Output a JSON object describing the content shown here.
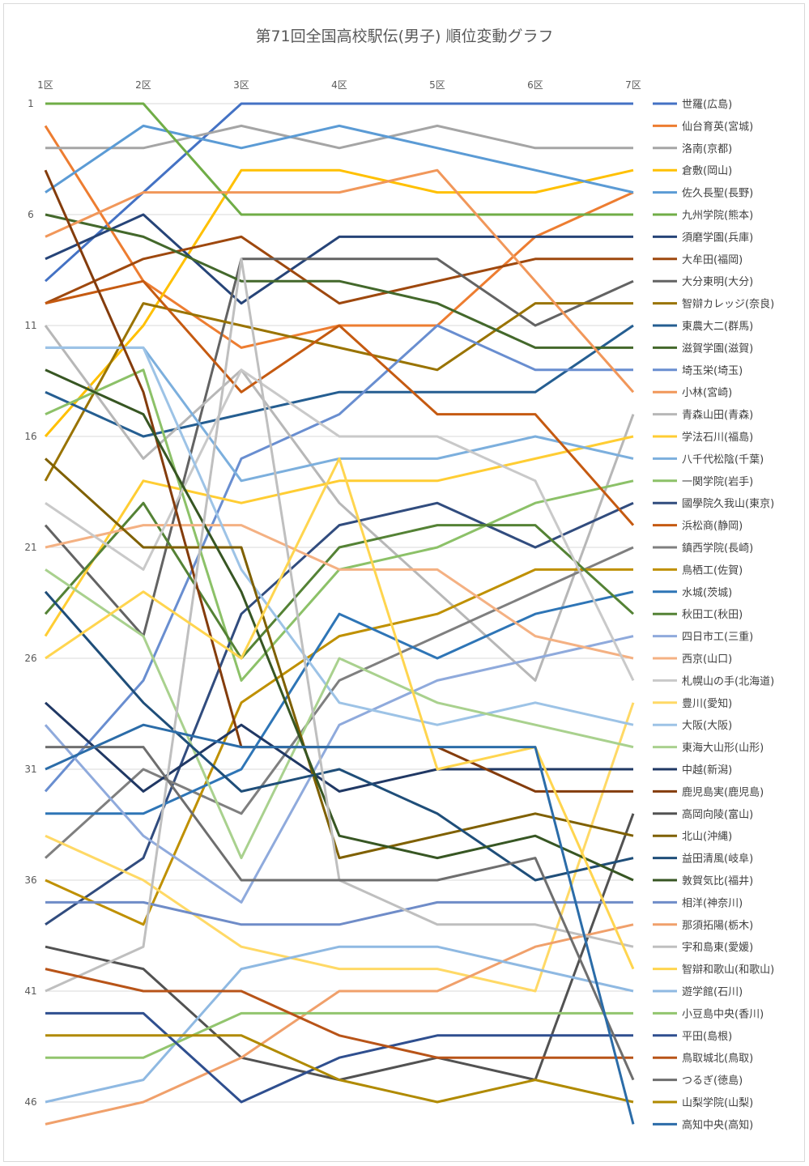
{
  "chart_data": {
    "type": "line",
    "title": "第71回全国高校駅伝(男子) 順位変動グラフ",
    "x_ticks": [
      "1区",
      "2区",
      "3区",
      "4区",
      "5区",
      "6区",
      "7区"
    ],
    "y_ticks": [
      "1",
      "6",
      "11",
      "16",
      "21",
      "26",
      "31",
      "36",
      "41",
      "46"
    ],
    "y_range": [
      1,
      46
    ],
    "y_inverted": true,
    "grid": true,
    "legend_position": "right",
    "series": [
      {
        "name": "世羅(広島)",
        "color": "#4472C4",
        "values": [
          9,
          5,
          1,
          1,
          1,
          1,
          1
        ]
      },
      {
        "name": "仙台育英(宮城)",
        "color": "#ED7D31",
        "values": [
          2,
          9,
          12,
          11,
          11,
          7,
          5
        ]
      },
      {
        "name": "洛南(京都)",
        "color": "#A5A5A5",
        "values": [
          3,
          3,
          2,
          3,
          2,
          3,
          3
        ]
      },
      {
        "name": "倉敷(岡山)",
        "color": "#FFC000",
        "values": [
          16,
          11,
          4,
          4,
          5,
          5,
          4
        ]
      },
      {
        "name": "佐久長聖(長野)",
        "color": "#5B9BD5",
        "values": [
          5,
          2,
          3,
          2,
          3,
          4,
          5
        ]
      },
      {
        "name": "九州学院(熊本)",
        "color": "#70AD47",
        "values": [
          1,
          1,
          6,
          6,
          6,
          6,
          6
        ]
      },
      {
        "name": "須磨学園(兵庫)",
        "color": "#264478",
        "values": [
          8,
          6,
          10,
          7,
          7,
          7,
          7
        ]
      },
      {
        "name": "大牟田(福岡)",
        "color": "#9E480E",
        "values": [
          10,
          8,
          7,
          10,
          9,
          8,
          8
        ]
      },
      {
        "name": "大分東明(大分)",
        "color": "#636363",
        "values": [
          20,
          25,
          8,
          8,
          8,
          11,
          9
        ]
      },
      {
        "name": "智辯カレッジ(奈良)",
        "color": "#997300",
        "values": [
          18,
          10,
          11,
          12,
          13,
          10,
          10
        ]
      },
      {
        "name": "東農大二(群馬)",
        "color": "#255E91",
        "values": [
          14,
          16,
          15,
          14,
          14,
          14,
          11
        ]
      },
      {
        "name": "滋賀学園(滋賀)",
        "color": "#43682B",
        "values": [
          6,
          7,
          9,
          9,
          10,
          12,
          12
        ]
      },
      {
        "name": "埼玉栄(埼玉)",
        "color": "#698ED0",
        "values": [
          32,
          27,
          17,
          15,
          11,
          13,
          13
        ]
      },
      {
        "name": "小林(宮崎)",
        "color": "#F1975A",
        "values": [
          7,
          5,
          5,
          5,
          4,
          9,
          14
        ]
      },
      {
        "name": "青森山田(青森)",
        "color": "#B7B7B7",
        "values": [
          11,
          17,
          13,
          19,
          23,
          27,
          15
        ]
      },
      {
        "name": "学法石川(福島)",
        "color": "#FFCD33",
        "values": [
          25,
          18,
          19,
          18,
          18,
          17,
          16
        ]
      },
      {
        "name": "八千代松陰(千葉)",
        "color": "#7CAFDD",
        "values": [
          12,
          12,
          18,
          17,
          17,
          16,
          17
        ]
      },
      {
        "name": "一関学院(岩手)",
        "color": "#8CC168",
        "values": [
          15,
          13,
          27,
          22,
          21,
          19,
          18
        ]
      },
      {
        "name": "國學院久我山(東京)",
        "color": "#314C7E",
        "values": [
          38,
          35,
          24,
          20,
          19,
          21,
          19
        ]
      },
      {
        "name": "浜松商(静岡)",
        "color": "#C55A11",
        "values": [
          10,
          9,
          14,
          11,
          15,
          15,
          20
        ]
      },
      {
        "name": "鎮西学院(長崎)",
        "color": "#7F7F7F",
        "values": [
          35,
          31,
          33,
          27,
          25,
          23,
          21
        ]
      },
      {
        "name": "鳥栖工(佐賀)",
        "color": "#BF9000",
        "values": [
          36,
          38,
          28,
          25,
          24,
          22,
          22
        ]
      },
      {
        "name": "水城(茨城)",
        "color": "#2E75B6",
        "values": [
          33,
          33,
          31,
          24,
          26,
          24,
          23
        ]
      },
      {
        "name": "秋田工(秋田)",
        "color": "#548235",
        "values": [
          24,
          19,
          26,
          21,
          20,
          20,
          24
        ]
      },
      {
        "name": "四日市工(三重)",
        "color": "#8FAADC",
        "values": [
          29,
          34,
          37,
          29,
          27,
          26,
          25
        ]
      },
      {
        "name": "西京(山口)",
        "color": "#F4B183",
        "values": [
          21,
          20,
          20,
          22,
          22,
          25,
          26
        ]
      },
      {
        "name": "札幌山の手(北海道)",
        "color": "#C9C9C9",
        "values": [
          19,
          22,
          13,
          16,
          16,
          18,
          27
        ]
      },
      {
        "name": "豊川(愛知)",
        "color": "#FFD966",
        "values": [
          34,
          36,
          39,
          40,
          40,
          41,
          28
        ]
      },
      {
        "name": "大阪(大阪)",
        "color": "#9DC3E6",
        "values": [
          12,
          12,
          22,
          28,
          29,
          28,
          29
        ]
      },
      {
        "name": "東海大山形(山形)",
        "color": "#A9D18E",
        "values": [
          22,
          25,
          35,
          26,
          28,
          29,
          30
        ]
      },
      {
        "name": "中越(新潟)",
        "color": "#203864",
        "values": [
          28,
          32,
          29,
          32,
          31,
          31,
          31
        ]
      },
      {
        "name": "鹿児島実(鹿児島)",
        "color": "#843C0C",
        "values": [
          4,
          14,
          30,
          30,
          30,
          32,
          32
        ]
      },
      {
        "name": "高岡向陵(富山)",
        "color": "#525252",
        "values": [
          39,
          40,
          44,
          45,
          44,
          45,
          33
        ]
      },
      {
        "name": "北山(沖縄)",
        "color": "#7F6000",
        "values": [
          17,
          21,
          21,
          35,
          34,
          33,
          34
        ]
      },
      {
        "name": "益田清風(岐阜)",
        "color": "#1F4E79",
        "values": [
          23,
          28,
          32,
          31,
          33,
          36,
          35
        ]
      },
      {
        "name": "敦賀気比(福井)",
        "color": "#375623",
        "values": [
          13,
          15,
          23,
          34,
          35,
          34,
          36
        ]
      },
      {
        "name": "相洋(神奈川)",
        "color": "#6F8CC8",
        "values": [
          37,
          37,
          38,
          38,
          37,
          37,
          37
        ]
      },
      {
        "name": "那須拓陽(栃木)",
        "color": "#F0A06B",
        "values": [
          47,
          46,
          44,
          41,
          41,
          39,
          38
        ]
      },
      {
        "name": "宇和島東(愛媛)",
        "color": "#BFBFBF",
        "values": [
          41,
          39,
          8,
          36,
          38,
          38,
          39
        ]
      },
      {
        "name": "智辯和歌山(和歌山)",
        "color": "#FFD54F",
        "values": [
          26,
          23,
          26,
          17,
          31,
          30,
          40
        ]
      },
      {
        "name": "遊学館(石川)",
        "color": "#8FB9E2",
        "values": [
          46,
          45,
          40,
          39,
          39,
          40,
          41
        ]
      },
      {
        "name": "小豆島中央(香川)",
        "color": "#92C56E",
        "values": [
          44,
          44,
          42,
          42,
          42,
          42,
          42
        ]
      },
      {
        "name": "平田(島根)",
        "color": "#2F4F8F",
        "values": [
          42,
          42,
          46,
          44,
          43,
          43,
          43
        ]
      },
      {
        "name": "鳥取城北(鳥取)",
        "color": "#B85418",
        "values": [
          40,
          41,
          41,
          43,
          44,
          44,
          44
        ]
      },
      {
        "name": "つるぎ(徳島)",
        "color": "#6E6E6E",
        "values": [
          30,
          30,
          36,
          36,
          36,
          35,
          45
        ]
      },
      {
        "name": "山梨学院(山梨)",
        "color": "#B08A00",
        "values": [
          43,
          43,
          43,
          45,
          46,
          45,
          46
        ]
      },
      {
        "name": "高知中央(高知)",
        "color": "#2B6CA8",
        "values": [
          31,
          29,
          30,
          30,
          30,
          30,
          47
        ]
      }
    ]
  }
}
